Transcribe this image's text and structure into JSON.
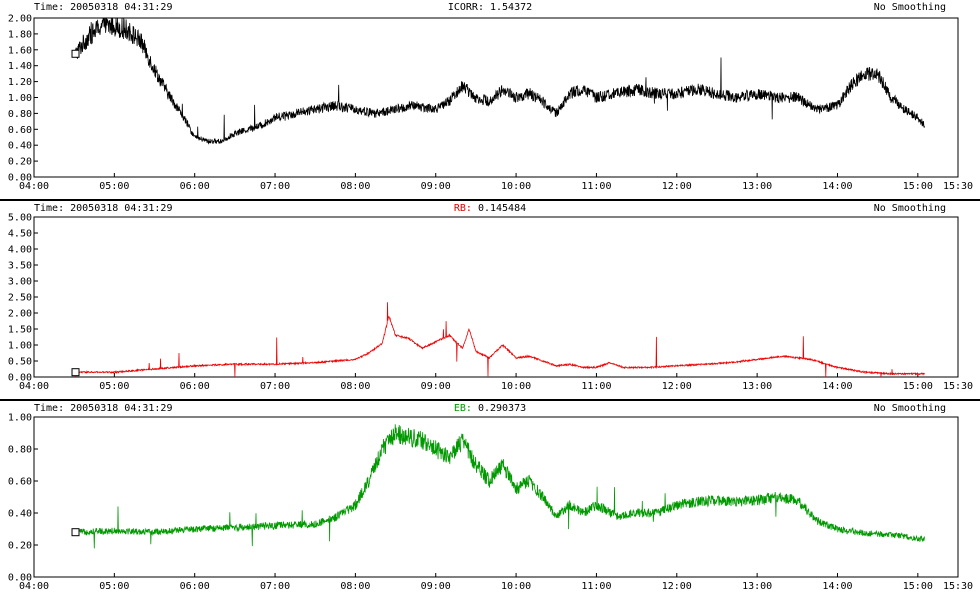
{
  "time_label": "Time:",
  "smoothing_label": "No Smoothing",
  "panels": [
    {
      "time_value": "20050318 04:31:29",
      "readout_name": "ICORR:",
      "readout_value": "1.54372",
      "name_color": "#000000",
      "line_color": "#000000"
    },
    {
      "time_value": "20050318 04:31:29",
      "readout_name": "RB:",
      "readout_value": "0.145484",
      "name_color": "#e00000",
      "line_color": "#ee0000"
    },
    {
      "time_value": "20050318 04:31:29",
      "readout_name": "EB:",
      "readout_value": "0.290373",
      "name_color": "#009900",
      "line_color": "#009900"
    }
  ],
  "chart_data": [
    {
      "type": "line",
      "x_ticks": [
        "04:00",
        "05:00",
        "06:00",
        "07:00",
        "08:00",
        "09:00",
        "10:00",
        "11:00",
        "12:00",
        "13:00",
        "14:00",
        "15:00",
        "15:30"
      ],
      "xlim": [
        "04:00",
        "15:30"
      ],
      "y_ticks": [
        "0.00",
        "0.20",
        "0.40",
        "0.60",
        "0.80",
        "1.00",
        "1.20",
        "1.40",
        "1.60",
        "1.80",
        "2.00"
      ],
      "ylim": [
        0,
        2.0
      ],
      "series": [
        {
          "x": [
            "04:31",
            "04:40",
            "04:50",
            "05:00",
            "05:10",
            "05:20",
            "05:30",
            "05:40",
            "05:50",
            "06:00",
            "06:10",
            "06:20",
            "06:30",
            "06:40",
            "06:50",
            "07:00",
            "07:15",
            "07:30",
            "07:45",
            "08:00",
            "08:15",
            "08:30",
            "08:45",
            "09:00",
            "09:10",
            "09:20",
            "09:30",
            "09:40",
            "09:50",
            "10:00",
            "10:10",
            "10:20",
            "10:30",
            "10:40",
            "10:50",
            "11:00",
            "11:15",
            "11:30",
            "11:45",
            "12:00",
            "12:15",
            "12:30",
            "12:45",
            "13:00",
            "13:15",
            "13:30",
            "13:45",
            "14:00",
            "14:10",
            "14:20",
            "14:30",
            "14:40",
            "14:50",
            "15:00",
            "15:05"
          ],
          "y": [
            1.55,
            1.75,
            1.9,
            1.9,
            1.85,
            1.7,
            1.35,
            1.05,
            0.8,
            0.5,
            0.45,
            0.45,
            0.55,
            0.6,
            0.65,
            0.75,
            0.8,
            0.85,
            0.9,
            0.85,
            0.8,
            0.85,
            0.9,
            0.85,
            0.95,
            1.15,
            1.0,
            0.95,
            1.1,
            1.0,
            1.05,
            0.95,
            0.8,
            1.05,
            1.1,
            1.0,
            1.05,
            1.1,
            1.05,
            1.05,
            1.1,
            1.05,
            1.0,
            1.05,
            1.0,
            1.0,
            0.85,
            0.9,
            1.15,
            1.3,
            1.3,
            1.0,
            0.85,
            0.75,
            0.65
          ]
        }
      ]
    },
    {
      "type": "line",
      "x_ticks": [
        "04:00",
        "05:00",
        "06:00",
        "07:00",
        "08:00",
        "09:00",
        "10:00",
        "11:00",
        "12:00",
        "13:00",
        "14:00",
        "15:00",
        "15:30"
      ],
      "xlim": [
        "04:00",
        "15:30"
      ],
      "y_ticks": [
        "0.00",
        "0.50",
        "1.00",
        "1.50",
        "2.00",
        "2.50",
        "3.00",
        "3.50",
        "4.00",
        "4.50",
        "5.00"
      ],
      "ylim": [
        0,
        5.0
      ],
      "series": [
        {
          "x": [
            "04:31",
            "05:00",
            "05:30",
            "06:00",
            "06:30",
            "07:00",
            "07:30",
            "08:00",
            "08:10",
            "08:20",
            "08:25",
            "08:30",
            "08:40",
            "08:50",
            "09:00",
            "09:10",
            "09:20",
            "09:25",
            "09:30",
            "09:40",
            "09:50",
            "10:00",
            "10:10",
            "10:20",
            "10:30",
            "10:40",
            "10:50",
            "11:00",
            "11:10",
            "11:20",
            "11:40",
            "12:00",
            "12:20",
            "12:40",
            "13:00",
            "13:20",
            "13:40",
            "14:00",
            "14:20",
            "14:40",
            "15:00",
            "15:05"
          ],
          "y": [
            0.15,
            0.15,
            0.25,
            0.35,
            0.4,
            0.4,
            0.45,
            0.55,
            0.75,
            1.05,
            1.9,
            1.3,
            1.2,
            0.9,
            1.1,
            1.3,
            0.9,
            1.5,
            0.8,
            0.6,
            1.0,
            0.6,
            0.65,
            0.5,
            0.35,
            0.4,
            0.3,
            0.3,
            0.45,
            0.3,
            0.3,
            0.35,
            0.4,
            0.45,
            0.55,
            0.65,
            0.55,
            0.3,
            0.15,
            0.1,
            0.1,
            0.1
          ]
        }
      ]
    },
    {
      "type": "line",
      "x_ticks": [
        "04:00",
        "05:00",
        "06:00",
        "07:00",
        "08:00",
        "09:00",
        "10:00",
        "11:00",
        "12:00",
        "13:00",
        "14:00",
        "15:00",
        "15:30"
      ],
      "xlim": [
        "04:00",
        "15:30"
      ],
      "y_ticks": [
        "0.00",
        "0.20",
        "0.40",
        "0.60",
        "0.80",
        "1.00"
      ],
      "ylim": [
        0,
        1.0
      ],
      "series": [
        {
          "x": [
            "04:31",
            "05:00",
            "05:30",
            "06:00",
            "06:30",
            "07:00",
            "07:30",
            "07:45",
            "08:00",
            "08:10",
            "08:20",
            "08:30",
            "08:40",
            "08:50",
            "09:00",
            "09:10",
            "09:20",
            "09:30",
            "09:40",
            "09:50",
            "10:00",
            "10:10",
            "10:20",
            "10:30",
            "10:40",
            "10:50",
            "11:00",
            "11:15",
            "11:30",
            "11:45",
            "12:00",
            "12:15",
            "12:30",
            "12:45",
            "13:00",
            "13:15",
            "13:30",
            "13:45",
            "14:00",
            "14:15",
            "14:30",
            "14:45",
            "15:00",
            "15:05"
          ],
          "y": [
            0.28,
            0.29,
            0.28,
            0.3,
            0.31,
            0.32,
            0.33,
            0.37,
            0.45,
            0.6,
            0.8,
            0.9,
            0.88,
            0.85,
            0.8,
            0.75,
            0.85,
            0.7,
            0.6,
            0.7,
            0.55,
            0.6,
            0.5,
            0.38,
            0.45,
            0.4,
            0.45,
            0.38,
            0.4,
            0.4,
            0.45,
            0.47,
            0.48,
            0.47,
            0.48,
            0.5,
            0.48,
            0.35,
            0.3,
            0.28,
            0.27,
            0.26,
            0.24,
            0.24
          ]
        }
      ]
    }
  ]
}
